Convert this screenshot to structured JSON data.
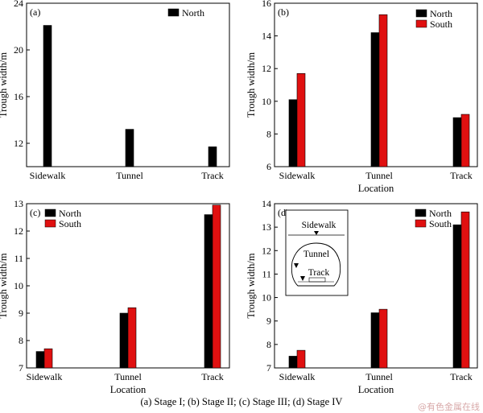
{
  "figure": {
    "caption": "(a) Stage I; (b) Stage II; (c) Stage III; (d) Stage IV",
    "watermark": "@有色金属在线"
  },
  "colors": {
    "north": "#000000",
    "south": "#e01010",
    "axis": "#000000"
  },
  "chart_data": [
    {
      "type": "bar",
      "panel": "(a)",
      "categories": [
        "Sidewalk",
        "Tunnel",
        "Track"
      ],
      "xlabel": "",
      "ylabel": "Trough width/m",
      "ylim": [
        10,
        24
      ],
      "yticks": [
        12,
        16,
        20,
        24
      ],
      "legend": "top-right",
      "series": [
        {
          "name": "North",
          "values": [
            22.1,
            13.2,
            11.7
          ]
        }
      ]
    },
    {
      "type": "bar",
      "panel": "(b)",
      "categories": [
        "Sidewalk",
        "Tunnel",
        "Track"
      ],
      "xlabel": "Location",
      "ylabel": "Trough width/m",
      "ylim": [
        6,
        16
      ],
      "yticks": [
        6,
        8,
        10,
        12,
        14,
        16
      ],
      "legend": "top-right",
      "series": [
        {
          "name": "North",
          "values": [
            10.1,
            14.2,
            9.0
          ]
        },
        {
          "name": "South",
          "values": [
            11.7,
            15.3,
            9.2
          ]
        }
      ]
    },
    {
      "type": "bar",
      "panel": "(c)",
      "categories": [
        "Sidewalk",
        "Tunnel",
        "Track"
      ],
      "xlabel": "Location",
      "ylabel": "Trough width/m",
      "ylim": [
        7,
        13
      ],
      "yticks": [
        7,
        8,
        9,
        10,
        11,
        12,
        13
      ],
      "legend": "top-left",
      "series": [
        {
          "name": "North",
          "values": [
            7.6,
            9.0,
            12.6
          ]
        },
        {
          "name": "South",
          "values": [
            7.7,
            9.2,
            12.95
          ]
        }
      ]
    },
    {
      "type": "bar",
      "panel": "(d)",
      "categories": [
        "Sidewalk",
        "Tunnel",
        "Track"
      ],
      "xlabel": "Location",
      "ylabel": "Trough width/m",
      "ylim": [
        7,
        14
      ],
      "yticks": [
        7,
        8,
        9,
        10,
        11,
        12,
        13,
        14
      ],
      "legend": "top-right",
      "inset_labels": [
        "Sidewalk",
        "Tunnel",
        "Track"
      ],
      "series": [
        {
          "name": "North",
          "values": [
            7.5,
            9.35,
            13.1
          ]
        },
        {
          "name": "South",
          "values": [
            7.75,
            9.5,
            13.65
          ]
        }
      ]
    }
  ]
}
